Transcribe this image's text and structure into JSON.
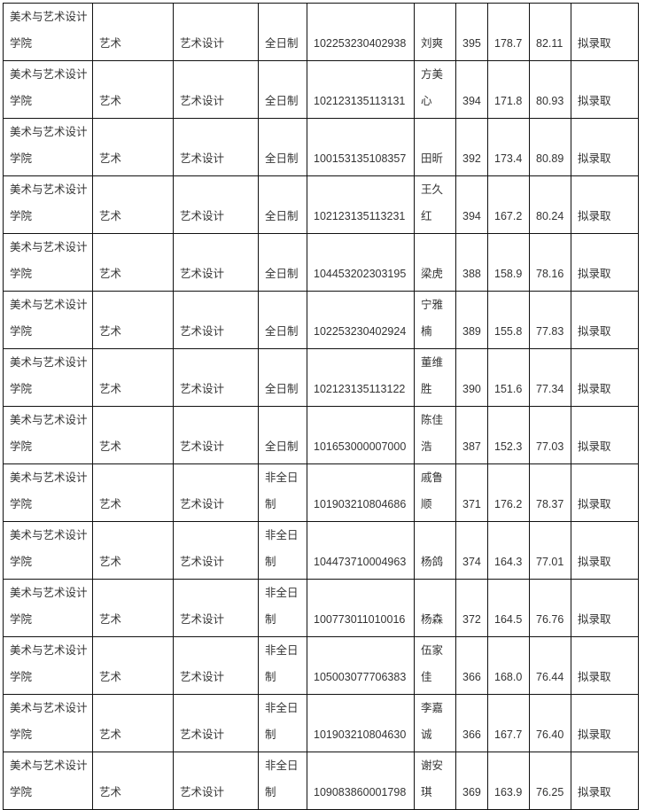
{
  "rows": [
    {
      "college": "美术与艺术设计学院",
      "category": "艺术",
      "major": "艺术设计",
      "mode": "全日制",
      "exam_id": "102253230402938",
      "name": "刘爽",
      "initial": "395",
      "retest": "178.7",
      "total": "82.11",
      "result": "拟录取"
    },
    {
      "college": "美术与艺术设计学院",
      "category": "艺术",
      "major": "艺术设计",
      "mode": "全日制",
      "exam_id": "102123135113131",
      "name": "方美心",
      "initial": "394",
      "retest": "171.8",
      "total": "80.93",
      "result": "拟录取"
    },
    {
      "college": "美术与艺术设计学院",
      "category": "艺术",
      "major": "艺术设计",
      "mode": "全日制",
      "exam_id": "100153135108357",
      "name": "田昕",
      "initial": "392",
      "retest": "173.4",
      "total": "80.89",
      "result": "拟录取"
    },
    {
      "college": "美术与艺术设计学院",
      "category": "艺术",
      "major": "艺术设计",
      "mode": "全日制",
      "exam_id": "102123135113231",
      "name": "王久红",
      "initial": "394",
      "retest": "167.2",
      "total": "80.24",
      "result": "拟录取"
    },
    {
      "college": "美术与艺术设计学院",
      "category": "艺术",
      "major": "艺术设计",
      "mode": "全日制",
      "exam_id": "104453202303195",
      "name": "梁虎",
      "initial": "388",
      "retest": "158.9",
      "total": "78.16",
      "result": "拟录取"
    },
    {
      "college": "美术与艺术设计学院",
      "category": "艺术",
      "major": "艺术设计",
      "mode": "全日制",
      "exam_id": "102253230402924",
      "name": "宁雅楠",
      "initial": "389",
      "retest": "155.8",
      "total": "77.83",
      "result": "拟录取"
    },
    {
      "college": "美术与艺术设计学院",
      "category": "艺术",
      "major": "艺术设计",
      "mode": "全日制",
      "exam_id": "102123135113122",
      "name": "董维胜",
      "initial": "390",
      "retest": "151.6",
      "total": "77.34",
      "result": "拟录取"
    },
    {
      "college": "美术与艺术设计学院",
      "category": "艺术",
      "major": "艺术设计",
      "mode": "全日制",
      "exam_id": "101653000007000",
      "name": "陈佳浩",
      "initial": "387",
      "retest": "152.3",
      "total": "77.03",
      "result": "拟录取"
    },
    {
      "college": "美术与艺术设计学院",
      "category": "艺术",
      "major": "艺术设计",
      "mode": "非全日制",
      "exam_id": "101903210804686",
      "name": "戚鲁顺",
      "initial": "371",
      "retest": "176.2",
      "total": "78.37",
      "result": "拟录取"
    },
    {
      "college": "美术与艺术设计学院",
      "category": "艺术",
      "major": "艺术设计",
      "mode": "非全日制",
      "exam_id": "104473710004963",
      "name": "杨鸽",
      "initial": "374",
      "retest": "164.3",
      "total": "77.01",
      "result": "拟录取"
    },
    {
      "college": "美术与艺术设计学院",
      "category": "艺术",
      "major": "艺术设计",
      "mode": "非全日制",
      "exam_id": "100773011010016",
      "name": "杨森",
      "initial": "372",
      "retest": "164.5",
      "total": "76.76",
      "result": "拟录取"
    },
    {
      "college": "美术与艺术设计学院",
      "category": "艺术",
      "major": "艺术设计",
      "mode": "非全日制",
      "exam_id": "105003077706383",
      "name": "伍家佳",
      "initial": "366",
      "retest": "168.0",
      "total": "76.44",
      "result": "拟录取"
    },
    {
      "college": "美术与艺术设计学院",
      "category": "艺术",
      "major": "艺术设计",
      "mode": "非全日制",
      "exam_id": "101903210804630",
      "name": "李嘉诚",
      "initial": "366",
      "retest": "167.7",
      "total": "76.40",
      "result": "拟录取"
    },
    {
      "college": "美术与艺术设计学院",
      "category": "艺术",
      "major": "艺术设计",
      "mode": "非全日制",
      "exam_id": "109083860001798",
      "name": "谢安琪",
      "initial": "369",
      "retest": "163.9",
      "total": "76.25",
      "result": "拟录取"
    }
  ]
}
